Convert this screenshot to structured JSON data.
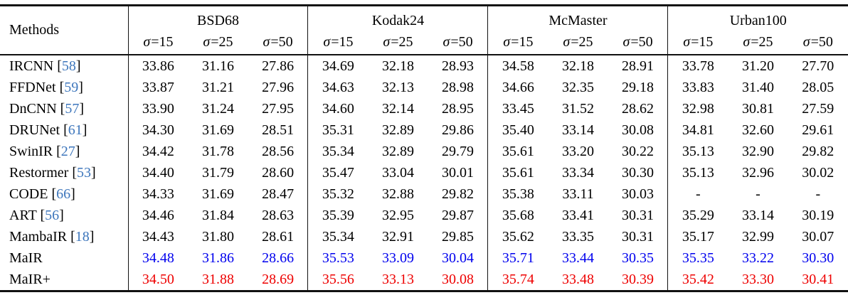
{
  "colors": {
    "text": "#000000",
    "citation": "#3D76BC",
    "best_blue": "#0000EE",
    "best_red": "#EE0000",
    "rule": "#111111"
  },
  "table": {
    "methods_header": "Methods",
    "groups": [
      {
        "name": "BSD68",
        "subcols": [
          "σ=15",
          "σ=25",
          "σ=50"
        ]
      },
      {
        "name": "Kodak24",
        "subcols": [
          "σ=15",
          "σ=25",
          "σ=50"
        ]
      },
      {
        "name": "McMaster",
        "subcols": [
          "σ=15",
          "σ=25",
          "σ=50"
        ]
      },
      {
        "name": "Urban100",
        "subcols": [
          "σ=15",
          "σ=25",
          "σ=50"
        ]
      }
    ],
    "rows": [
      {
        "method": "IRCNN",
        "cite": "58",
        "color": "text",
        "values": [
          "33.86",
          "31.16",
          "27.86",
          "34.69",
          "32.18",
          "28.93",
          "34.58",
          "32.18",
          "28.91",
          "33.78",
          "31.20",
          "27.70"
        ]
      },
      {
        "method": "FFDNet",
        "cite": "59",
        "color": "text",
        "values": [
          "33.87",
          "31.21",
          "27.96",
          "34.63",
          "32.13",
          "28.98",
          "34.66",
          "32.35",
          "29.18",
          "33.83",
          "31.40",
          "28.05"
        ]
      },
      {
        "method": "DnCNN",
        "cite": "57",
        "color": "text",
        "values": [
          "33.90",
          "31.24",
          "27.95",
          "34.60",
          "32.14",
          "28.95",
          "33.45",
          "31.52",
          "28.62",
          "32.98",
          "30.81",
          "27.59"
        ]
      },
      {
        "method": "DRUNet",
        "cite": "61",
        "color": "text",
        "values": [
          "34.30",
          "31.69",
          "28.51",
          "35.31",
          "32.89",
          "29.86",
          "35.40",
          "33.14",
          "30.08",
          "34.81",
          "32.60",
          "29.61"
        ]
      },
      {
        "method": "SwinIR",
        "cite": "27",
        "color": "text",
        "values": [
          "34.42",
          "31.78",
          "28.56",
          "35.34",
          "32.89",
          "29.79",
          "35.61",
          "33.20",
          "30.22",
          "35.13",
          "32.90",
          "29.82"
        ]
      },
      {
        "method": "Restormer",
        "cite": "53",
        "color": "text",
        "values": [
          "34.40",
          "31.79",
          "28.60",
          "35.47",
          "33.04",
          "30.01",
          "35.61",
          "33.34",
          "30.30",
          "35.13",
          "32.96",
          "30.02"
        ]
      },
      {
        "method": "CODE",
        "cite": "66",
        "color": "text",
        "values": [
          "34.33",
          "31.69",
          "28.47",
          "35.32",
          "32.88",
          "29.82",
          "35.38",
          "33.11",
          "30.03",
          "-",
          "-",
          "-"
        ]
      },
      {
        "method": "ART",
        "cite": "56",
        "color": "text",
        "values": [
          "34.46",
          "31.84",
          "28.63",
          "35.39",
          "32.95",
          "29.87",
          "35.68",
          "33.41",
          "30.31",
          "35.29",
          "33.14",
          "30.19"
        ]
      },
      {
        "method": "MambaIR",
        "cite": "18",
        "color": "text",
        "values": [
          "34.43",
          "31.80",
          "28.61",
          "35.34",
          "32.91",
          "29.85",
          "35.62",
          "33.35",
          "30.31",
          "35.17",
          "32.99",
          "30.07"
        ]
      },
      {
        "method": "MaIR",
        "cite": "",
        "color": "best_blue",
        "values": [
          "34.48",
          "31.86",
          "28.66",
          "35.53",
          "33.09",
          "30.04",
          "35.71",
          "33.44",
          "30.35",
          "35.35",
          "33.22",
          "30.30"
        ]
      },
      {
        "method": "MaIR+",
        "cite": "",
        "color": "best_red",
        "values": [
          "34.50",
          "31.88",
          "28.69",
          "35.56",
          "33.13",
          "30.08",
          "35.74",
          "33.48",
          "30.39",
          "35.42",
          "33.30",
          "30.41"
        ]
      }
    ]
  }
}
